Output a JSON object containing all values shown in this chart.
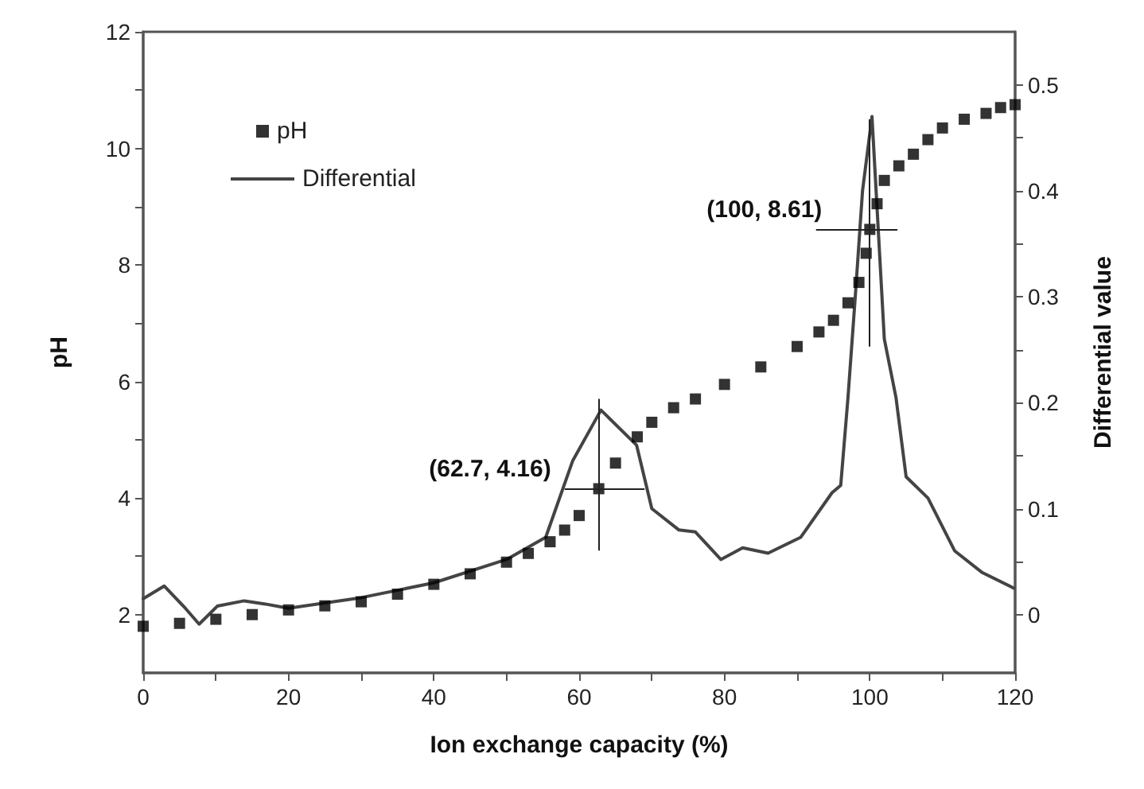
{
  "chart_data": {
    "type": "scatter",
    "xlabel": "Ion exchange capacity (%)",
    "ylabel": "pH",
    "y2label": "Differential value",
    "xlim": [
      0,
      120
    ],
    "ylim": [
      1,
      12
    ],
    "y2lim": [
      -0.055,
      0.55
    ],
    "xticks": [
      0,
      {
        "value": 10,
        "label": null
      },
      20,
      {
        "value": 30,
        "label": null
      },
      40,
      {
        "value": 50,
        "label": null
      },
      60,
      {
        "value": 70,
        "label": null
      },
      80,
      {
        "value": 90,
        "label": null
      },
      100,
      {
        "value": 110,
        "label": null
      },
      120
    ],
    "yticks": [
      2,
      {
        "value": 3,
        "label": null
      },
      4,
      {
        "value": 5,
        "label": null
      },
      6,
      {
        "value": 7,
        "label": null
      },
      8,
      {
        "value": 9,
        "label": null
      },
      10,
      {
        "value": 11,
        "label": null
      },
      12
    ],
    "y2ticks": [
      0.0,
      {
        "value": 0.05,
        "label": null
      },
      {
        "value": 0.1,
        "label": "0.1"
      },
      {
        "value": 0.15,
        "label": null
      },
      {
        "value": 0.2,
        "label": "0.2"
      },
      {
        "value": 0.25,
        "label": null
      },
      {
        "value": 0.3,
        "label": "0.3"
      },
      {
        "value": 0.35,
        "label": null
      },
      {
        "value": 0.4,
        "label": "0.4"
      },
      {
        "value": 0.45,
        "label": null
      },
      {
        "value": 0.5,
        "label": "0.5"
      }
    ],
    "grid": false,
    "legend": "top left",
    "series": [
      {
        "name": "pH",
        "marker": "square",
        "color": "#000000",
        "x": [
          0,
          5,
          10,
          15,
          20,
          25,
          30,
          35,
          40,
          45,
          50,
          53,
          56,
          58,
          60,
          62.7,
          65,
          68,
          70,
          73,
          76,
          80,
          85,
          90,
          93,
          95,
          97,
          98.5,
          99.5,
          100,
          101,
          102,
          104,
          106,
          108,
          110,
          113,
          116,
          118,
          120
        ],
        "values": [
          1.8,
          1.85,
          1.92,
          2.0,
          2.08,
          2.15,
          2.22,
          2.35,
          2.52,
          2.7,
          2.9,
          3.05,
          3.25,
          3.45,
          3.7,
          4.16,
          4.6,
          5.05,
          5.3,
          5.55,
          5.7,
          5.95,
          6.25,
          6.6,
          6.85,
          7.05,
          7.35,
          7.7,
          8.2,
          8.61,
          9.05,
          9.45,
          9.7,
          9.9,
          10.15,
          10.35,
          10.5,
          10.6,
          10.7,
          10.75
        ],
        "errors": [
          null,
          null,
          null,
          null,
          null,
          null,
          null,
          null,
          null,
          null,
          null,
          null,
          null,
          null,
          null,
          [
            3.1,
            5.7
          ],
          null,
          null,
          null,
          null,
          null,
          null,
          null,
          null,
          null,
          null,
          null,
          null,
          null,
          [
            6.6,
            10.5
          ],
          null,
          null,
          null,
          null,
          null,
          null,
          null,
          null,
          null,
          null
        ],
        "xerrors": [
          null,
          null,
          null,
          null,
          null,
          null,
          null,
          null,
          null,
          null,
          null,
          null,
          null,
          null,
          null,
          [
            58,
            69
          ],
          null,
          null,
          null,
          null,
          null,
          null,
          null,
          null,
          null,
          null,
          null,
          null,
          null,
          [
            92.6,
            103.8
          ],
          null,
          null,
          null,
          null,
          null,
          null,
          null,
          null,
          null,
          null
        ]
      },
      {
        "name": "Differential",
        "type": "line",
        "axis": "y2",
        "marker": "none",
        "line_style": "solid",
        "color": "#444444",
        "x": [
          0,
          2.9,
          5.8,
          7.7,
          10.2,
          13.9,
          16.8,
          20,
          30,
          40,
          50,
          55.4,
          59.1,
          63,
          67.9,
          70,
          73.7,
          76,
          79.5,
          82.5,
          86,
          90.5,
          94.8,
          96,
          97,
          98,
          99,
          100.3,
          102,
          103.6,
          105,
          108,
          111.7,
          115.4,
          119.8
        ],
        "values": [
          0.015,
          0.027,
          0.006,
          -0.009,
          0.008,
          0.013,
          0.01,
          0.006,
          0.016,
          0.03,
          0.052,
          0.073,
          0.145,
          0.193,
          0.16,
          0.1,
          0.08,
          0.078,
          0.052,
          0.063,
          0.058,
          0.073,
          0.115,
          0.122,
          0.205,
          0.3,
          0.4,
          0.47,
          0.26,
          0.205,
          0.13,
          0.11,
          0.06,
          0.04,
          0.025
        ]
      }
    ],
    "annotations": [
      {
        "text": "(62.7, 4.16)",
        "x": 62.7,
        "y": 4.16
      },
      {
        "text": "(100, 8.61)",
        "x": 100,
        "y": 8.61
      }
    ]
  }
}
